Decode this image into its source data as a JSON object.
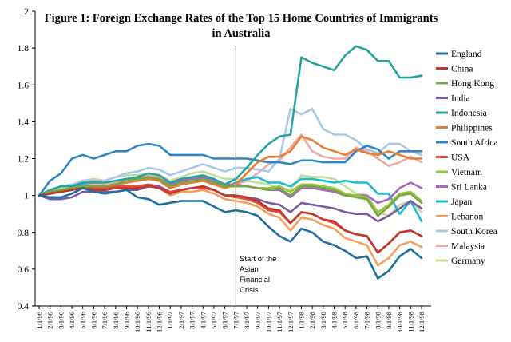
{
  "chart_data": {
    "type": "line",
    "title_line1": "Figure 1: Foreign Exchange Rates of the Top 15 Home Countries of Immigrants",
    "title_line2": "in Australia",
    "xlabel": "",
    "ylabel": "",
    "ylim": [
      0.4,
      2.0
    ],
    "yticks": [
      "0.4",
      "0.6",
      "0.8",
      "1",
      "1.2",
      "1.4",
      "1.6",
      "1.8",
      "2"
    ],
    "x_labels": [
      "1/1/96",
      "2/1/96",
      "3/1/96",
      "4/1/96",
      "5/1/96",
      "6/1/96",
      "7/1/96",
      "8/1/96",
      "9/1/96",
      "10/1/96",
      "11/1/96",
      "12/1/96",
      "1/1/97",
      "2/1/97",
      "3/1/97",
      "4/1/97",
      "5/1/97",
      "6/1/97",
      "7/1/97",
      "8/1/97",
      "9/1/97",
      "10/1/97",
      "11/1/97",
      "12/1/97",
      "1/1/98",
      "2/1/98",
      "3/1/98",
      "4/1/98",
      "5/1/98",
      "6/1/98",
      "7/1/98",
      "8/1/98",
      "9/1/98",
      "10/1/98",
      "11/1/98",
      "12/1/98"
    ],
    "x": [
      "1/96",
      "2/96",
      "3/96",
      "4/96",
      "5/96",
      "6/96",
      "7/96",
      "8/96",
      "9/96",
      "10/96",
      "11/96",
      "12/96",
      "1/97",
      "2/97",
      "3/97",
      "4/97",
      "5/97",
      "6/97",
      "7/97",
      "8/97",
      "9/97",
      "10/97",
      "11/97",
      "12/97",
      "1/98",
      "2/98",
      "3/98",
      "4/98",
      "5/98",
      "6/98",
      "7/98",
      "8/98",
      "9/98",
      "10/98",
      "11/98",
      "12/98"
    ],
    "annotation": {
      "lines": [
        "Start of the",
        "Asian",
        "Financial",
        "Crisis"
      ],
      "at_x": "7/97"
    },
    "series": [
      {
        "name": "England",
        "color": "#1f6f9f",
        "values": [
          1.0,
          0.99,
          0.99,
          1.01,
          1.04,
          1.02,
          1.01,
          1.02,
          1.03,
          0.99,
          0.98,
          0.95,
          0.96,
          0.97,
          0.97,
          0.97,
          0.94,
          0.91,
          0.92,
          0.91,
          0.89,
          0.83,
          0.78,
          0.75,
          0.82,
          0.8,
          0.75,
          0.73,
          0.7,
          0.66,
          0.67,
          0.55,
          0.59,
          0.67,
          0.71,
          0.66
        ]
      },
      {
        "name": "China",
        "color": "#c0392b",
        "values": [
          1.0,
          1.01,
          1.02,
          1.03,
          1.04,
          1.03,
          1.03,
          1.04,
          1.04,
          1.04,
          1.05,
          1.04,
          1.01,
          1.03,
          1.04,
          1.05,
          1.03,
          1.0,
          1.0,
          0.99,
          0.97,
          0.93,
          0.92,
          0.85,
          0.91,
          0.9,
          0.87,
          0.86,
          0.81,
          0.79,
          0.78,
          0.69,
          0.74,
          0.8,
          0.81,
          0.78
        ]
      },
      {
        "name": "Hong Kong",
        "color": "#7aa545",
        "values": [
          1.0,
          1.02,
          1.03,
          1.04,
          1.05,
          1.05,
          1.05,
          1.06,
          1.08,
          1.09,
          1.1,
          1.09,
          1.05,
          1.07,
          1.08,
          1.09,
          1.07,
          1.05,
          1.05,
          1.05,
          1.04,
          1.03,
          1.04,
          1.0,
          1.05,
          1.05,
          1.04,
          1.03,
          1.0,
          0.99,
          0.98,
          0.89,
          0.94,
          1.0,
          1.01,
          0.96
        ]
      },
      {
        "name": "India",
        "color": "#7b5aa6",
        "values": [
          1.0,
          0.98,
          0.98,
          0.99,
          1.02,
          1.02,
          1.02,
          1.02,
          1.03,
          1.03,
          1.05,
          1.05,
          1.01,
          1.03,
          1.04,
          1.05,
          1.03,
          1.0,
          1.0,
          0.99,
          0.98,
          0.96,
          0.95,
          0.91,
          0.96,
          0.95,
          0.94,
          0.93,
          0.91,
          0.9,
          0.9,
          0.86,
          0.89,
          0.93,
          0.97,
          0.93
        ]
      },
      {
        "name": "Indonesia",
        "color": "#22a5a0",
        "values": [
          1.0,
          1.03,
          1.05,
          1.05,
          1.07,
          1.07,
          1.07,
          1.08,
          1.09,
          1.1,
          1.12,
          1.11,
          1.07,
          1.09,
          1.1,
          1.11,
          1.09,
          1.06,
          1.09,
          1.15,
          1.22,
          1.28,
          1.32,
          1.33,
          1.75,
          1.72,
          1.7,
          1.68,
          1.76,
          1.81,
          1.79,
          1.73,
          1.73,
          1.64,
          1.64,
          1.65
        ]
      },
      {
        "name": "Philippines",
        "color": "#e67e30",
        "values": [
          1.0,
          1.02,
          1.03,
          1.04,
          1.05,
          1.05,
          1.05,
          1.06,
          1.07,
          1.08,
          1.09,
          1.08,
          1.04,
          1.06,
          1.07,
          1.08,
          1.06,
          1.04,
          1.06,
          1.12,
          1.18,
          1.21,
          1.21,
          1.24,
          1.32,
          1.3,
          1.26,
          1.24,
          1.22,
          1.25,
          1.23,
          1.22,
          1.24,
          1.22,
          1.2,
          1.2
        ]
      },
      {
        "name": "South Africa",
        "color": "#2e86c1",
        "values": [
          1.0,
          1.08,
          1.12,
          1.2,
          1.22,
          1.2,
          1.22,
          1.24,
          1.24,
          1.27,
          1.28,
          1.27,
          1.22,
          1.22,
          1.22,
          1.22,
          1.2,
          1.2,
          1.2,
          1.2,
          1.19,
          1.18,
          1.18,
          1.17,
          1.19,
          1.19,
          1.18,
          1.18,
          1.18,
          1.24,
          1.27,
          1.25,
          1.2,
          1.24,
          1.24,
          1.24
        ]
      },
      {
        "name": "USA",
        "color": "#e74c3c",
        "values": [
          1.0,
          1.02,
          1.03,
          1.04,
          1.05,
          1.04,
          1.04,
          1.05,
          1.05,
          1.05,
          1.06,
          1.05,
          1.02,
          1.03,
          1.04,
          1.04,
          1.03,
          1.0,
          0.99,
          0.98,
          0.96,
          0.92,
          0.91,
          0.85,
          0.91,
          0.9,
          0.87,
          0.85,
          0.81,
          0.79,
          0.78,
          0.69,
          0.74,
          0.8,
          0.81,
          0.78
        ]
      },
      {
        "name": "Vietnam",
        "color": "#9bc53d",
        "values": [
          1.0,
          1.02,
          1.03,
          1.04,
          1.05,
          1.05,
          1.05,
          1.06,
          1.07,
          1.08,
          1.09,
          1.08,
          1.04,
          1.06,
          1.07,
          1.08,
          1.06,
          1.05,
          1.05,
          1.05,
          1.04,
          1.04,
          1.05,
          1.02,
          1.06,
          1.06,
          1.05,
          1.04,
          1.01,
          1.0,
          0.99,
          0.91,
          0.95,
          1.01,
          1.02,
          0.97
        ]
      },
      {
        "name": "Sri Lanka",
        "color": "#a569bd",
        "values": [
          1.0,
          1.01,
          1.02,
          1.03,
          1.05,
          1.05,
          1.05,
          1.06,
          1.07,
          1.08,
          1.1,
          1.09,
          1.06,
          1.08,
          1.09,
          1.1,
          1.08,
          1.06,
          1.06,
          1.05,
          1.04,
          1.03,
          1.03,
          0.99,
          1.04,
          1.04,
          1.03,
          1.02,
          1.0,
          1.0,
          1.0,
          0.96,
          0.98,
          1.04,
          1.07,
          1.04
        ]
      },
      {
        "name": "Japan",
        "color": "#1abccf",
        "values": [
          1.0,
          1.02,
          1.03,
          1.04,
          1.06,
          1.05,
          1.05,
          1.06,
          1.08,
          1.08,
          1.1,
          1.08,
          1.04,
          1.06,
          1.07,
          1.09,
          1.07,
          1.04,
          1.07,
          1.09,
          1.1,
          1.07,
          1.07,
          1.05,
          1.09,
          1.09,
          1.08,
          1.07,
          1.08,
          1.07,
          1.07,
          1.01,
          1.01,
          0.9,
          0.97,
          0.86
        ]
      },
      {
        "name": "Lebanon",
        "color": "#f5a05a",
        "values": [
          1.0,
          1.01,
          1.02,
          1.03,
          1.04,
          1.03,
          1.03,
          1.04,
          1.04,
          1.04,
          1.05,
          1.04,
          1.0,
          1.02,
          1.02,
          1.03,
          1.01,
          0.98,
          0.97,
          0.96,
          0.94,
          0.9,
          0.88,
          0.81,
          0.88,
          0.87,
          0.84,
          0.82,
          0.77,
          0.75,
          0.73,
          0.62,
          0.66,
          0.73,
          0.75,
          0.72
        ]
      },
      {
        "name": "South Korea",
        "color": "#a9c8e8",
        "values": [
          1.0,
          1.03,
          1.05,
          1.06,
          1.08,
          1.08,
          1.08,
          1.1,
          1.12,
          1.13,
          1.15,
          1.14,
          1.11,
          1.13,
          1.15,
          1.17,
          1.15,
          1.13,
          1.15,
          1.15,
          1.14,
          1.13,
          1.2,
          1.47,
          1.44,
          1.47,
          1.36,
          1.33,
          1.33,
          1.3,
          1.25,
          1.23,
          1.28,
          1.28,
          1.24,
          1.22
        ]
      },
      {
        "name": "Malaysia",
        "color": "#f0a8a8",
        "values": [
          1.0,
          1.02,
          1.03,
          1.04,
          1.06,
          1.06,
          1.06,
          1.07,
          1.08,
          1.09,
          1.11,
          1.1,
          1.06,
          1.08,
          1.09,
          1.1,
          1.08,
          1.06,
          1.06,
          1.08,
          1.12,
          1.17,
          1.19,
          1.26,
          1.33,
          1.24,
          1.21,
          1.2,
          1.2,
          1.26,
          1.24,
          1.2,
          1.16,
          1.18,
          1.21,
          1.18
        ]
      },
      {
        "name": "Germany",
        "color": "#c5dd9a",
        "values": [
          1.0,
          1.02,
          1.04,
          1.05,
          1.08,
          1.09,
          1.08,
          1.1,
          1.11,
          1.11,
          1.12,
          1.11,
          1.08,
          1.1,
          1.12,
          1.13,
          1.11,
          1.09,
          1.09,
          1.08,
          1.07,
          1.06,
          1.04,
          1.03,
          1.11,
          1.1,
          1.1,
          1.09,
          1.05,
          1.01,
          1.0,
          0.91,
          0.89,
          0.95,
          0.97,
          0.91
        ]
      }
    ]
  }
}
